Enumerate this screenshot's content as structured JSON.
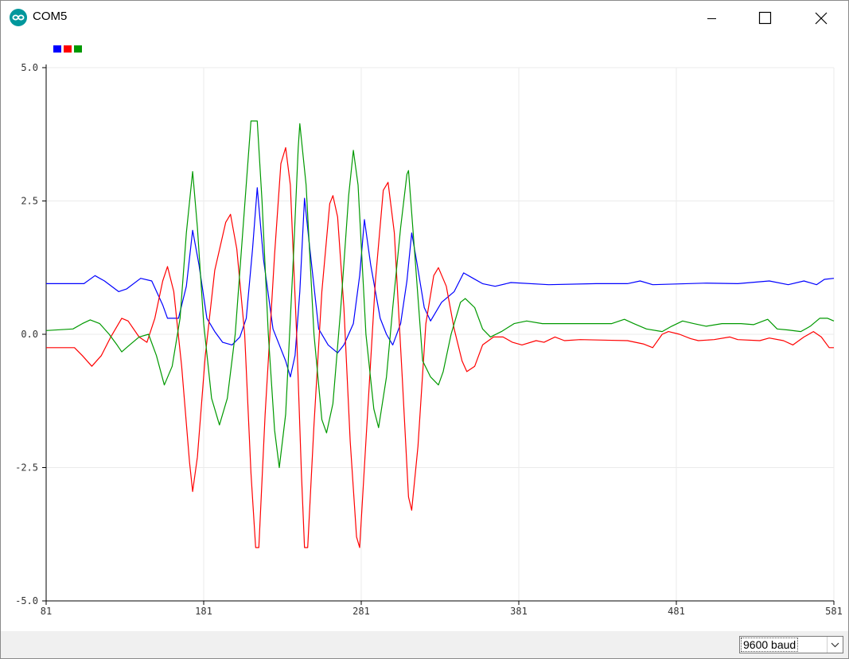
{
  "window": {
    "title": "COM5",
    "icon": "arduino-infinity-icon",
    "accent_color": "#00979c",
    "controls": [
      "minimize-icon",
      "maximize-icon",
      "close-icon"
    ]
  },
  "legend": {
    "swatches": [
      {
        "color": "#0000ff"
      },
      {
        "color": "#ff0000"
      },
      {
        "color": "#009900"
      }
    ]
  },
  "status_bar": {
    "baud_rate": "9600 baud"
  },
  "chart_data": {
    "type": "line",
    "x_range": [
      81,
      581
    ],
    "ylim": [
      -5.0,
      5.0
    ],
    "x_ticks": [
      "81",
      "181",
      "281",
      "381",
      "481",
      "581"
    ],
    "y_ticks": [
      "5.0",
      "2.5",
      "0.0",
      "-2.5",
      "-5.0"
    ],
    "grid": true,
    "legend_placement": "top-left",
    "series": [
      {
        "color": "#0000ff",
        "points": [
          [
            81,
            0.95
          ],
          [
            105,
            0.95
          ],
          [
            112,
            1.1
          ],
          [
            118,
            1.0
          ],
          [
            127,
            0.8
          ],
          [
            132,
            0.85
          ],
          [
            141,
            1.05
          ],
          [
            148,
            1.0
          ],
          [
            155,
            0.55
          ],
          [
            158,
            0.3
          ],
          [
            165,
            0.3
          ],
          [
            170,
            0.9
          ],
          [
            174,
            1.95
          ],
          [
            178,
            1.3
          ],
          [
            183,
            0.3
          ],
          [
            188,
            0.05
          ],
          [
            193,
            -0.15
          ],
          [
            199,
            -0.2
          ],
          [
            204,
            -0.05
          ],
          [
            208,
            0.3
          ],
          [
            212,
            1.6
          ],
          [
            215,
            2.75
          ],
          [
            219,
            1.4
          ],
          [
            225,
            0.1
          ],
          [
            233,
            -0.5
          ],
          [
            236,
            -0.8
          ],
          [
            239,
            -0.4
          ],
          [
            242,
            0.8
          ],
          [
            245,
            2.55
          ],
          [
            248,
            1.7
          ],
          [
            254,
            0.1
          ],
          [
            260,
            -0.2
          ],
          [
            266,
            -0.35
          ],
          [
            270,
            -0.2
          ],
          [
            276,
            0.2
          ],
          [
            280,
            1.1
          ],
          [
            283,
            2.15
          ],
          [
            287,
            1.3
          ],
          [
            293,
            0.3
          ],
          [
            297,
            0.0
          ],
          [
            301,
            -0.2
          ],
          [
            306,
            0.2
          ],
          [
            310,
            1.0
          ],
          [
            313,
            1.9
          ],
          [
            316,
            1.4
          ],
          [
            321,
            0.5
          ],
          [
            325,
            0.25
          ],
          [
            332,
            0.6
          ],
          [
            340,
            0.8
          ],
          [
            346,
            1.15
          ],
          [
            352,
            1.05
          ],
          [
            358,
            0.95
          ],
          [
            366,
            0.9
          ],
          [
            376,
            0.97
          ],
          [
            400,
            0.93
          ],
          [
            430,
            0.95
          ],
          [
            450,
            0.95
          ],
          [
            458,
            1.0
          ],
          [
            466,
            0.93
          ],
          [
            500,
            0.96
          ],
          [
            520,
            0.95
          ],
          [
            540,
            1.0
          ],
          [
            552,
            0.93
          ],
          [
            562,
            1.0
          ],
          [
            570,
            0.93
          ],
          [
            575,
            1.03
          ],
          [
            581,
            1.05
          ]
        ]
      },
      {
        "color": "#ff0000",
        "points": [
          [
            81,
            -0.25
          ],
          [
            99,
            -0.25
          ],
          [
            104,
            -0.4
          ],
          [
            110,
            -0.6
          ],
          [
            116,
            -0.4
          ],
          [
            122,
            -0.05
          ],
          [
            129,
            0.3
          ],
          [
            133,
            0.25
          ],
          [
            140,
            -0.05
          ],
          [
            145,
            -0.15
          ],
          [
            150,
            0.3
          ],
          [
            155,
            1.0
          ],
          [
            158,
            1.27
          ],
          [
            162,
            0.8
          ],
          [
            167,
            -0.6
          ],
          [
            172,
            -2.4
          ],
          [
            174,
            -2.95
          ],
          [
            177,
            -2.3
          ],
          [
            182,
            -0.4
          ],
          [
            188,
            1.2
          ],
          [
            195,
            2.1
          ],
          [
            198,
            2.25
          ],
          [
            202,
            1.6
          ],
          [
            207,
            0.0
          ],
          [
            211,
            -2.6
          ],
          [
            214,
            -4.0
          ],
          [
            216,
            -4.0
          ],
          [
            220,
            -1.5
          ],
          [
            226,
            1.5
          ],
          [
            230,
            3.2
          ],
          [
            233,
            3.5
          ],
          [
            236,
            2.8
          ],
          [
            240,
            0.0
          ],
          [
            243,
            -2.6
          ],
          [
            245,
            -4.0
          ],
          [
            247,
            -4.0
          ],
          [
            251,
            -1.7
          ],
          [
            256,
            0.8
          ],
          [
            261,
            2.45
          ],
          [
            263,
            2.6
          ],
          [
            266,
            2.2
          ],
          [
            270,
            0.5
          ],
          [
            274,
            -2.0
          ],
          [
            278,
            -3.8
          ],
          [
            280,
            -4.0
          ],
          [
            284,
            -2.0
          ],
          [
            290,
            1.0
          ],
          [
            295,
            2.7
          ],
          [
            298,
            2.85
          ],
          [
            302,
            1.9
          ],
          [
            307,
            -0.8
          ],
          [
            311,
            -3.05
          ],
          [
            313,
            -3.3
          ],
          [
            317,
            -2.1
          ],
          [
            322,
            0.2
          ],
          [
            327,
            1.1
          ],
          [
            330,
            1.25
          ],
          [
            335,
            0.9
          ],
          [
            340,
            0.1
          ],
          [
            345,
            -0.5
          ],
          [
            348,
            -0.7
          ],
          [
            353,
            -0.6
          ],
          [
            358,
            -0.2
          ],
          [
            365,
            -0.05
          ],
          [
            371,
            -0.05
          ],
          [
            377,
            -0.15
          ],
          [
            383,
            -0.2
          ],
          [
            392,
            -0.12
          ],
          [
            397,
            -0.15
          ],
          [
            404,
            -0.05
          ],
          [
            410,
            -0.12
          ],
          [
            420,
            -0.1
          ],
          [
            450,
            -0.12
          ],
          [
            460,
            -0.18
          ],
          [
            466,
            -0.25
          ],
          [
            472,
            0.0
          ],
          [
            476,
            0.05
          ],
          [
            483,
            0.0
          ],
          [
            490,
            -0.08
          ],
          [
            495,
            -0.12
          ],
          [
            505,
            -0.1
          ],
          [
            515,
            -0.05
          ],
          [
            520,
            -0.1
          ],
          [
            534,
            -0.12
          ],
          [
            540,
            -0.07
          ],
          [
            549,
            -0.12
          ],
          [
            555,
            -0.2
          ],
          [
            562,
            -0.05
          ],
          [
            568,
            0.05
          ],
          [
            573,
            -0.05
          ],
          [
            578,
            -0.25
          ],
          [
            581,
            -0.25
          ]
        ]
      },
      {
        "color": "#009900",
        "points": [
          [
            81,
            0.07
          ],
          [
            98,
            0.1
          ],
          [
            104,
            0.2
          ],
          [
            109,
            0.27
          ],
          [
            115,
            0.2
          ],
          [
            121,
            0.0
          ],
          [
            126,
            -0.2
          ],
          [
            129,
            -0.33
          ],
          [
            134,
            -0.2
          ],
          [
            140,
            -0.05
          ],
          [
            146,
            0.0
          ],
          [
            151,
            -0.4
          ],
          [
            156,
            -0.95
          ],
          [
            161,
            -0.6
          ],
          [
            166,
            0.3
          ],
          [
            170,
            1.9
          ],
          [
            174,
            3.05
          ],
          [
            177,
            2.0
          ],
          [
            181,
            0.2
          ],
          [
            186,
            -1.2
          ],
          [
            191,
            -1.7
          ],
          [
            196,
            -1.2
          ],
          [
            201,
            0.0
          ],
          [
            205,
            1.6
          ],
          [
            210,
            3.6
          ],
          [
            211,
            4.0
          ],
          [
            215,
            4.0
          ],
          [
            218,
            2.5
          ],
          [
            222,
            0.0
          ],
          [
            226,
            -1.8
          ],
          [
            229,
            -2.5
          ],
          [
            233,
            -1.5
          ],
          [
            238,
            1.5
          ],
          [
            241,
            3.5
          ],
          [
            242,
            3.95
          ],
          [
            246,
            2.8
          ],
          [
            251,
            0.0
          ],
          [
            256,
            -1.6
          ],
          [
            259,
            -1.85
          ],
          [
            263,
            -1.3
          ],
          [
            268,
            0.5
          ],
          [
            273,
            2.6
          ],
          [
            276,
            3.45
          ],
          [
            279,
            2.8
          ],
          [
            284,
            0.0
          ],
          [
            289,
            -1.4
          ],
          [
            292,
            -1.75
          ],
          [
            297,
            -0.8
          ],
          [
            301,
            0.5
          ],
          [
            306,
            2.0
          ],
          [
            310,
            3.0
          ],
          [
            311,
            3.07
          ],
          [
            315,
            1.5
          ],
          [
            320,
            -0.5
          ],
          [
            325,
            -0.8
          ],
          [
            330,
            -0.95
          ],
          [
            333,
            -0.7
          ],
          [
            338,
            0.0
          ],
          [
            344,
            0.6
          ],
          [
            347,
            0.67
          ],
          [
            353,
            0.5
          ],
          [
            358,
            0.1
          ],
          [
            363,
            -0.05
          ],
          [
            370,
            0.05
          ],
          [
            378,
            0.2
          ],
          [
            386,
            0.25
          ],
          [
            396,
            0.2
          ],
          [
            412,
            0.2
          ],
          [
            440,
            0.2
          ],
          [
            448,
            0.28
          ],
          [
            454,
            0.2
          ],
          [
            462,
            0.1
          ],
          [
            472,
            0.05
          ],
          [
            478,
            0.15
          ],
          [
            485,
            0.25
          ],
          [
            492,
            0.2
          ],
          [
            500,
            0.15
          ],
          [
            510,
            0.2
          ],
          [
            522,
            0.2
          ],
          [
            530,
            0.18
          ],
          [
            539,
            0.28
          ],
          [
            545,
            0.1
          ],
          [
            552,
            0.08
          ],
          [
            560,
            0.05
          ],
          [
            566,
            0.15
          ],
          [
            572,
            0.3
          ],
          [
            577,
            0.3
          ],
          [
            581,
            0.25
          ]
        ]
      }
    ]
  }
}
